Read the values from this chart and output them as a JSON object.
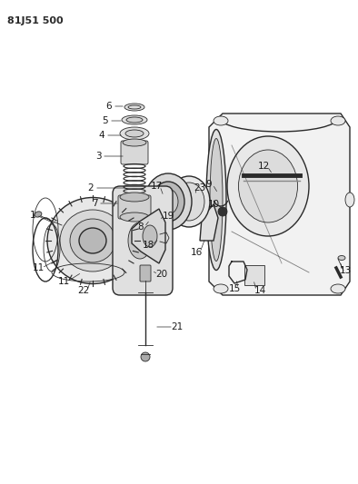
{
  "title_code": "81J51 500",
  "bg": "#ffffff",
  "lc": "#2a2a2a",
  "figsize": [
    3.94,
    5.33
  ],
  "dpi": 100
}
